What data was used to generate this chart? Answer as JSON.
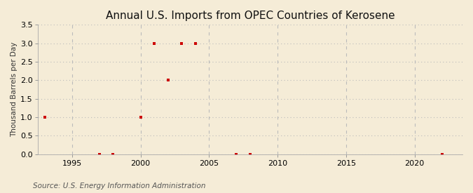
{
  "title": "Annual U.S. Imports from OPEC Countries of Kerosene",
  "ylabel": "Thousand Barrels per Day",
  "source": "Source: U.S. Energy Information Administration",
  "background_color": "#f5ecd7",
  "plot_background_color": "#f5ecd7",
  "xlim": [
    1992.5,
    2023.5
  ],
  "ylim": [
    0,
    3.5
  ],
  "xticks": [
    1995,
    2000,
    2005,
    2010,
    2015,
    2020
  ],
  "yticks": [
    0.0,
    0.5,
    1.0,
    1.5,
    2.0,
    2.5,
    3.0,
    3.5
  ],
  "data_years": [
    1993,
    1997,
    1998,
    2000,
    2001,
    2002,
    2003,
    2004,
    2007,
    2008,
    2022
  ],
  "data_values": [
    1.0,
    0.0,
    0.0,
    1.0,
    3.0,
    2.0,
    3.0,
    3.0,
    0.0,
    0.0,
    0.0
  ],
  "marker_color": "#cc0000",
  "marker_size": 3.5,
  "grid_color": "#bbbbbb",
  "title_fontsize": 11,
  "label_fontsize": 7.5,
  "tick_fontsize": 8,
  "source_fontsize": 7.5
}
